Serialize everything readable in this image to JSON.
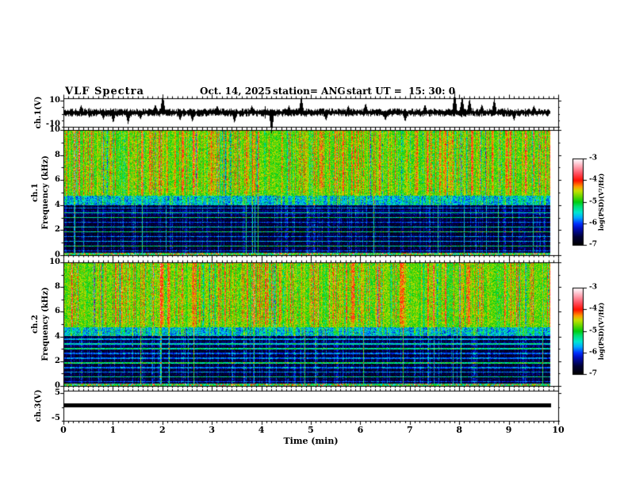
{
  "header": {
    "title": "VLF Spectra",
    "date": "Oct. 14, 2025",
    "station": "station= ANG",
    "start_ut": "start UT =  15: 30: 0"
  },
  "xaxis": {
    "label": "Time (min)",
    "tick_labels": [
      "0",
      "1",
      "2",
      "3",
      "4",
      "5",
      "6",
      "7",
      "8",
      "9",
      "10"
    ],
    "xlim": [
      0,
      10
    ]
  },
  "panels": {
    "ch1_wave": {
      "ylabel": "ch.1(V)",
      "tick_labels": [
        "10",
        "-10"
      ]
    },
    "spec1": {
      "ylabel_channel": "ch.1",
      "ylabel_freq": "Frequency (kHz)",
      "tick_labels": [
        "10",
        "8",
        "6",
        "4",
        "2",
        "0"
      ]
    },
    "spec2": {
      "ylabel_channel": "ch.2",
      "ylabel_freq": "Frequency (kHz)",
      "tick_labels": [
        "10",
        "8",
        "6",
        "4",
        "2",
        "0"
      ]
    },
    "ch3_wave": {
      "ylabel": "ch.3(V)",
      "tick_labels": [
        "5",
        "-5"
      ]
    }
  },
  "colorbar": {
    "label": "log(PSD)(V²/Hz)",
    "tick_labels": [
      "-3",
      "-4",
      "-5",
      "-6",
      "-7"
    ],
    "value_range": [
      -7,
      -3
    ],
    "stops": [
      {
        "t": 0.0,
        "c": "#000000"
      },
      {
        "t": 0.1,
        "c": "#000038"
      },
      {
        "t": 0.2,
        "c": "#0010c0"
      },
      {
        "t": 0.25,
        "c": "#0030ff"
      },
      {
        "t": 0.32,
        "c": "#00aaff"
      },
      {
        "t": 0.38,
        "c": "#00e8d0"
      },
      {
        "t": 0.45,
        "c": "#00e070"
      },
      {
        "t": 0.5,
        "c": "#00cc10"
      },
      {
        "t": 0.57,
        "c": "#70d800"
      },
      {
        "t": 0.63,
        "c": "#c8e000"
      },
      {
        "t": 0.68,
        "c": "#ff9800"
      },
      {
        "t": 0.75,
        "c": "#ff1000"
      },
      {
        "t": 0.83,
        "c": "#ff5060"
      },
      {
        "t": 0.9,
        "c": "#ff9aa8"
      },
      {
        "t": 0.96,
        "c": "#ffd8e0"
      },
      {
        "t": 1.0,
        "c": "#ffffff"
      }
    ]
  },
  "chart_data": [
    {
      "id": "ch1_waveform",
      "type": "line",
      "ylabel": "ch.1(V)",
      "ylim": [
        -12,
        12
      ],
      "yticks": [
        10,
        -10
      ],
      "xlim": [
        0,
        10
      ],
      "data_end_min": 9.84,
      "baseline_V": 0,
      "noise_amplitude_V": 1.3,
      "spikes": [
        {
          "t": 0.35,
          "v": 3.2
        },
        {
          "t": 0.8,
          "v": -3
        },
        {
          "t": 1.0,
          "v": -4.5
        },
        {
          "t": 1.3,
          "v": -5
        },
        {
          "t": 1.55,
          "v": -3
        },
        {
          "t": 1.85,
          "v": 3.5
        },
        {
          "t": 2.0,
          "v": 8
        },
        {
          "t": 2.35,
          "v": -3.5
        },
        {
          "t": 2.6,
          "v": -4
        },
        {
          "t": 3.1,
          "v": 3
        },
        {
          "t": 3.45,
          "v": -4.5
        },
        {
          "t": 3.8,
          "v": 3
        },
        {
          "t": 4.2,
          "v": -9
        },
        {
          "t": 4.55,
          "v": 3
        },
        {
          "t": 4.8,
          "v": 7
        },
        {
          "t": 5.3,
          "v": -3.5
        },
        {
          "t": 5.75,
          "v": 3
        },
        {
          "t": 6.1,
          "v": 4
        },
        {
          "t": 6.5,
          "v": -3.5
        },
        {
          "t": 6.9,
          "v": -4
        },
        {
          "t": 7.3,
          "v": 3.5
        },
        {
          "t": 7.9,
          "v": 9
        },
        {
          "t": 8.05,
          "v": 7
        },
        {
          "t": 8.2,
          "v": 6
        },
        {
          "t": 8.45,
          "v": 3.5
        },
        {
          "t": 8.7,
          "v": 6
        },
        {
          "t": 9.1,
          "v": -3.5
        },
        {
          "t": 9.5,
          "v": 3
        }
      ]
    },
    {
      "id": "ch1_spectrogram",
      "type": "heatmap",
      "seed": 101,
      "xlim_min": [
        0,
        10
      ],
      "data_end_min": 9.84,
      "freq_range_kHz": [
        0,
        10
      ],
      "value_range_logPSD": [
        -7,
        -3
      ],
      "bands": [
        {
          "freq_kHz": [
            4.75,
            10
          ],
          "base_log_psd": -4.82,
          "description": "yellow-green background with dense vertical red sferic streaks, occasional cyan dropouts"
        },
        {
          "freq_kHz": [
            4.05,
            4.75
          ],
          "base_log_psd": -5.7,
          "description": "cyan/blue transition band"
        },
        {
          "freq_kHz": [
            0.2,
            4.05
          ],
          "base_log_psd": -6.7,
          "description": "dark navy band with horizontal harmonic lines and vertical cyan streaks"
        },
        {
          "freq_kHz": [
            0,
            0.2
          ],
          "base_log_psd": -5.3,
          "description": "bright speckled bottom edge"
        }
      ],
      "harmonic_line_spacing_kHz": 0.38,
      "vertical_streaks": {
        "red_fraction": 0.32,
        "cyan_fraction": 0.13,
        "low_band_fraction": 0.3,
        "full_column_fraction": 0.045
      }
    },
    {
      "id": "ch2_spectrogram",
      "type": "heatmap",
      "seed": 202,
      "xlim_min": [
        0,
        10
      ],
      "data_end_min": 9.84,
      "freq_range_kHz": [
        0,
        10
      ],
      "value_range_logPSD": [
        -7,
        -3
      ],
      "bands": [
        {
          "freq_kHz": [
            4.75,
            10
          ],
          "base_log_psd": -4.82,
          "description": "yellow-green background with dense vertical red sferic streaks, occasional cyan dropouts"
        },
        {
          "freq_kHz": [
            4.05,
            4.75
          ],
          "base_log_psd": -5.7,
          "description": "cyan/blue transition band"
        },
        {
          "freq_kHz": [
            0.2,
            4.05
          ],
          "base_log_psd": -6.7,
          "description": "dark navy band with horizontal harmonic lines and vertical cyan streaks"
        },
        {
          "freq_kHz": [
            0,
            0.2
          ],
          "base_log_psd": -5.3,
          "description": "bright speckled bottom edge"
        }
      ],
      "harmonic_line_spacing_kHz": 0.38,
      "vertical_streaks": {
        "red_fraction": 0.32,
        "cyan_fraction": 0.13,
        "low_band_fraction": 0.3,
        "full_column_fraction": 0.045
      }
    },
    {
      "id": "ch3_waveform",
      "type": "line",
      "ylabel": "ch.3(V)",
      "ylim": [
        -6,
        6
      ],
      "yticks": [
        5,
        -5
      ],
      "xlim": [
        0,
        10
      ],
      "data_end_min": 9.84,
      "value_V": 0.2,
      "line_thickness_V": 1.6,
      "description": "constant thick flat trace just above 0 V"
    }
  ]
}
